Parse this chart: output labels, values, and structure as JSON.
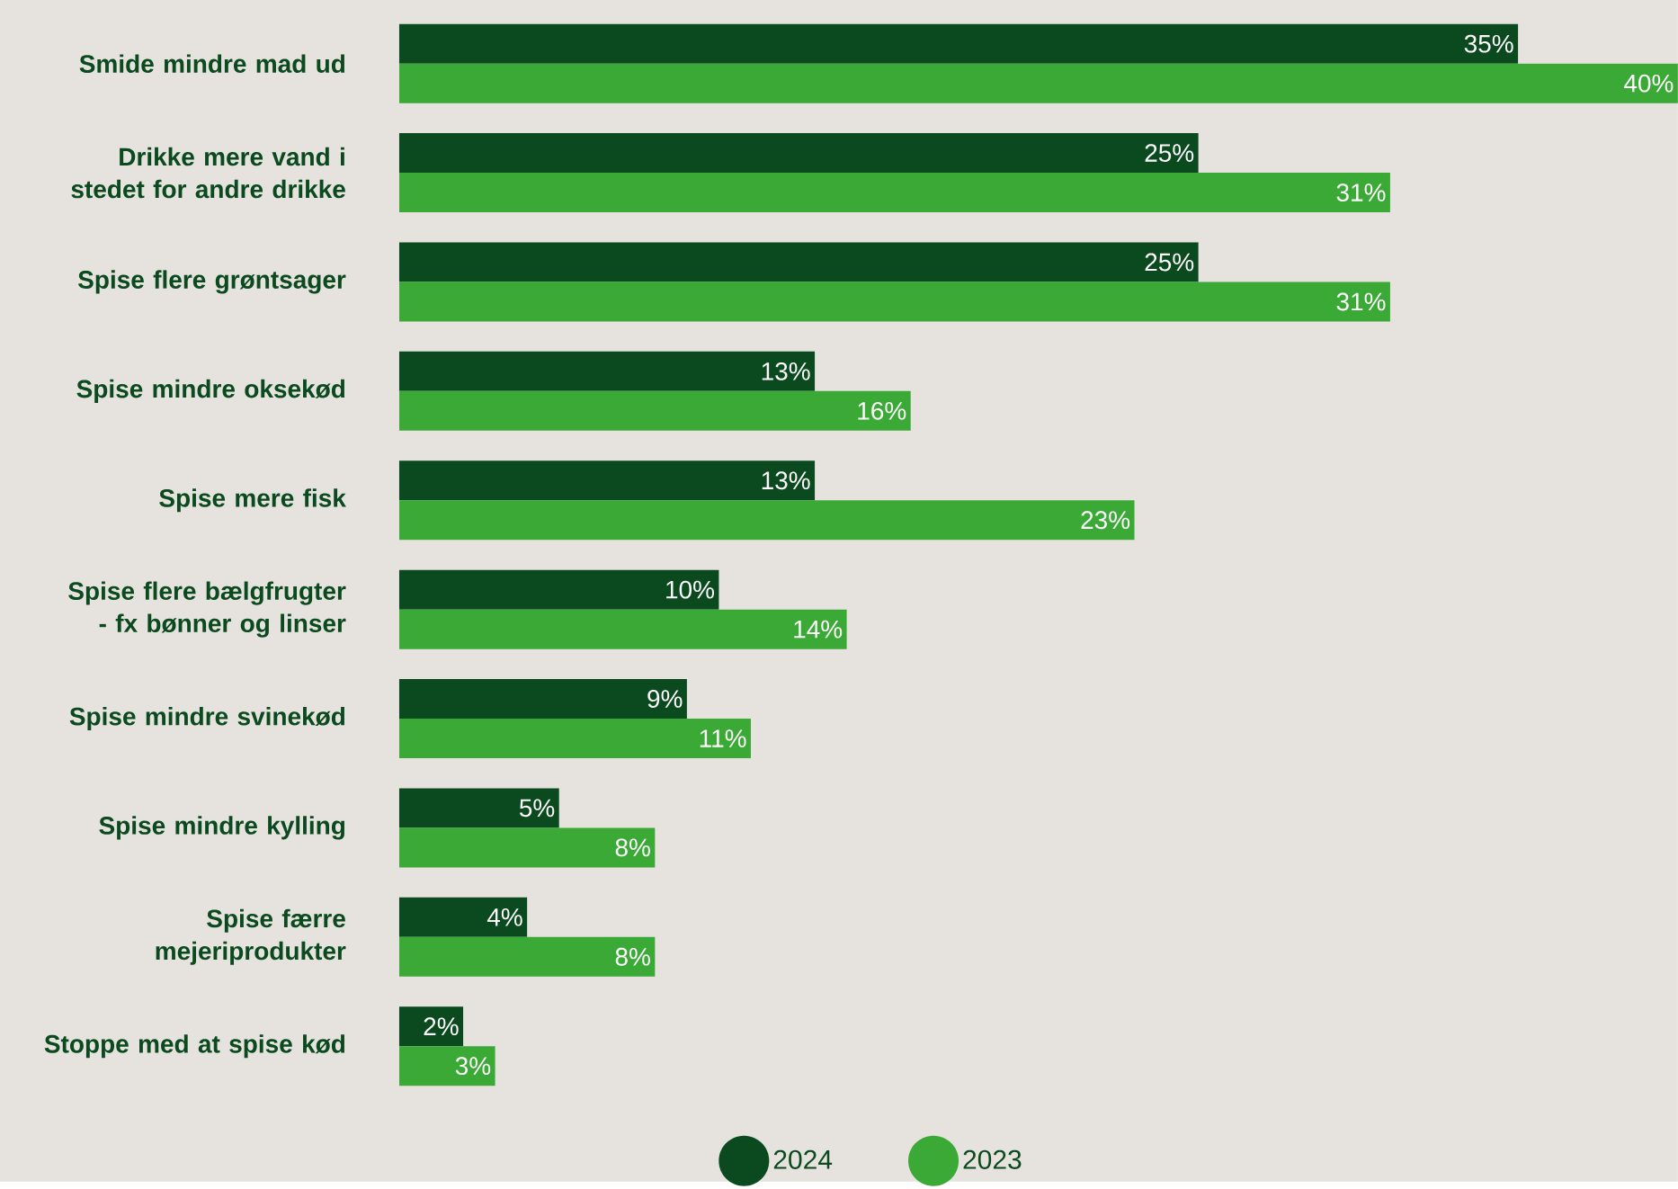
{
  "chart_data": {
    "type": "bar",
    "orientation": "horizontal",
    "categories": [
      "Smide mindre mad ud",
      "Drikke mere vand i stedet for andre drikke",
      "Spise flere grøntsager",
      "Spise mindre oksekød",
      "Spise mere fisk",
      "Spise flere bælgfrugter - fx bønner og linser",
      "Spise mindre svinekød",
      "Spise mindre kylling",
      "Spise færre mejeriprodukter",
      "Stoppe med at spise kød"
    ],
    "series": [
      {
        "name": "2024",
        "color": "#0b4a1f",
        "values": [
          35,
          25,
          25,
          13,
          13,
          10,
          9,
          5,
          4,
          2
        ],
        "value_labels": [
          "35%",
          "25%",
          "25%",
          "13%",
          "13%",
          "10%",
          "9%",
          "5%",
          "4%",
          "2%"
        ]
      },
      {
        "name": "2023",
        "color": "#3ba935",
        "values": [
          40,
          31,
          31,
          16,
          23,
          14,
          11,
          8,
          8,
          3
        ],
        "value_labels": [
          "40%",
          "31%",
          "31%",
          "16%",
          "23%",
          "14%",
          "11%",
          "8%",
          "8%",
          "3%"
        ]
      }
    ],
    "legend": "bottom"
  }
}
